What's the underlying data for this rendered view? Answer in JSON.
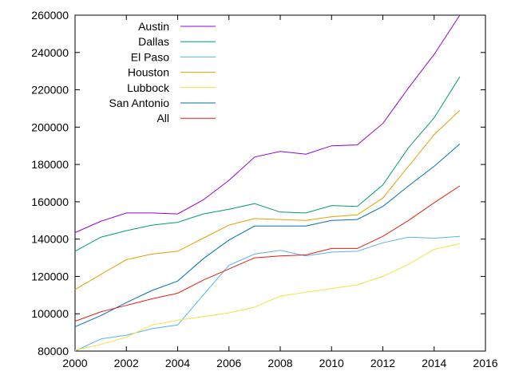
{
  "chart_data": {
    "type": "line",
    "title": "",
    "xlabel": "",
    "ylabel": "",
    "xlim": [
      2000,
      2016
    ],
    "ylim": [
      80000,
      260000
    ],
    "xticks": [
      "2000",
      "2002",
      "2004",
      "2006",
      "2008",
      "2010",
      "2012",
      "2014",
      "2016"
    ],
    "yticks": [
      "80000",
      "100000",
      "120000",
      "140000",
      "160000",
      "180000",
      "200000",
      "220000",
      "240000",
      "260000"
    ],
    "grid": false,
    "legend_position": "top-left",
    "x": [
      2000,
      2001,
      2002,
      2003,
      2004,
      2005,
      2006,
      2007,
      2008,
      2009,
      2010,
      2011,
      2012,
      2013,
      2014,
      2015
    ],
    "series": [
      {
        "name": "Austin",
        "color": "#9400d3",
        "values": [
          143500,
          149500,
          154000,
          154000,
          153500,
          161000,
          171500,
          184000,
          187000,
          185500,
          190000,
          190500,
          202000,
          221000,
          239000,
          260000
        ]
      },
      {
        "name": "Dallas",
        "color": "#009e73",
        "values": [
          133500,
          141000,
          144500,
          147500,
          149000,
          153500,
          156000,
          159000,
          154500,
          154000,
          158000,
          157500,
          169000,
          189000,
          205000,
          227000
        ]
      },
      {
        "name": "El Paso",
        "color": "#56b4e9",
        "values": [
          80000,
          86500,
          88500,
          92000,
          94000,
          110000,
          126000,
          132000,
          134000,
          131000,
          133000,
          133500,
          138000,
          141000,
          140500,
          141500
        ]
      },
      {
        "name": "Houston",
        "color": "#e69f00",
        "values": [
          113000,
          121000,
          129000,
          132000,
          133500,
          140500,
          147500,
          151000,
          150500,
          150000,
          152000,
          153000,
          162000,
          179000,
          196000,
          209000
        ]
      },
      {
        "name": "Lubbock",
        "color": "#f0e442",
        "values": [
          80500,
          83500,
          87500,
          94000,
          96500,
          98500,
          100500,
          103500,
          109500,
          111500,
          113500,
          115500,
          120000,
          126500,
          134500,
          137500
        ]
      },
      {
        "name": "San Antonio",
        "color": "#0072b2",
        "values": [
          93000,
          99000,
          106000,
          112500,
          117500,
          129500,
          139500,
          147000,
          147000,
          147000,
          150000,
          150500,
          157500,
          168500,
          179000,
          191000
        ]
      },
      {
        "name": "All",
        "color": "#e51e10",
        "values": [
          96000,
          101000,
          104500,
          108000,
          111000,
          118000,
          124000,
          130000,
          131000,
          131500,
          135000,
          135000,
          141500,
          150000,
          159500,
          168500
        ]
      }
    ]
  }
}
